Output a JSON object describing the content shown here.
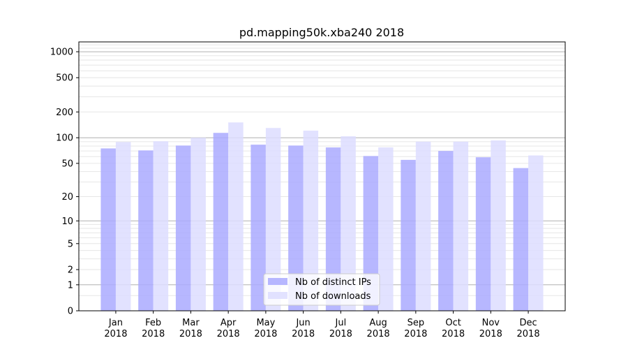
{
  "chart_data": {
    "type": "bar",
    "title": "pd.mapping50k.xba240 2018",
    "xlabel": "",
    "ylabel": "",
    "y_scale": "symlog (log10(1+y))",
    "ylim": [
      0,
      1300
    ],
    "y_ticks": [
      0,
      1,
      2,
      5,
      10,
      20,
      50,
      100,
      200,
      500,
      1000
    ],
    "grid": true,
    "legend_position": "bottom-center",
    "categories": [
      "Jan\n2018",
      "Feb\n2018",
      "Mar\n2018",
      "Apr\n2018",
      "May\n2018",
      "Jun\n2018",
      "Jul\n2018",
      "Aug\n2018",
      "Sep\n2018",
      "Oct\n2018",
      "Nov\n2018",
      "Dec\n2018"
    ],
    "series": [
      {
        "name": "Nb of distinct IPs",
        "color": "#aaaaff",
        "values": [
          75,
          71,
          81,
          114,
          83,
          81,
          77,
          61,
          55,
          70,
          59,
          44
        ]
      },
      {
        "name": "Nb of downloads",
        "color": "#ddddff",
        "values": [
          89,
          91,
          100,
          151,
          130,
          121,
          104,
          77,
          90,
          90,
          93,
          62
        ]
      }
    ]
  }
}
